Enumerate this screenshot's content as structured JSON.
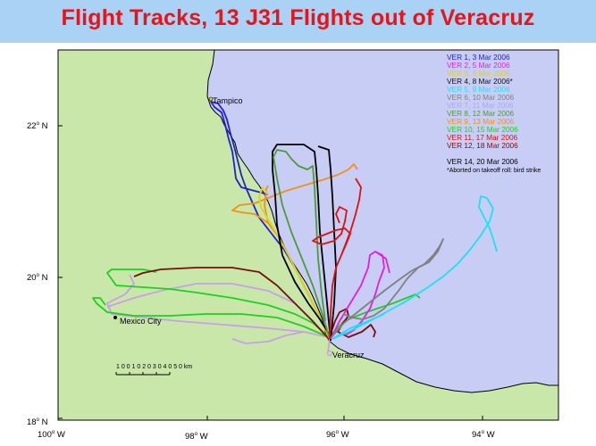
{
  "title": "Flight Tracks, 13 J31 Flights out of Veracruz",
  "map": {
    "colors": {
      "land": "#c8e7a8",
      "water": "#c8cdf5",
      "coast": "#000000",
      "frame": "#000000"
    },
    "lat_labels": [
      {
        "deg": "22",
        "dir": "N"
      },
      {
        "deg": "20",
        "dir": "N"
      },
      {
        "deg": "18",
        "dir": "N"
      }
    ],
    "lon_labels": [
      {
        "deg": "100",
        "dir": "W"
      },
      {
        "deg": "98",
        "dir": "W"
      },
      {
        "deg": "96",
        "dir": "W"
      },
      {
        "deg": "94",
        "dir": "W"
      }
    ],
    "cities": {
      "tampico": "Tampico",
      "mexico_city": "Mexico City",
      "veracruz": "Veracruz"
    },
    "scale_bar": {
      "label": "1 0 0 1 0 2 0 3 0 4 0 5 0 km"
    }
  },
  "legend": {
    "entries": [
      {
        "label": "VER  1,  3 Mar 2006",
        "color": "#2222cc"
      },
      {
        "label": "VER  2,  5 Mar 2006",
        "color": "#e020e0"
      },
      {
        "label": "VER  3,  6 Mar 2006",
        "color": "#e0d020"
      },
      {
        "label": "VER  4,  8 Mar 2006*",
        "color": "#111111"
      },
      {
        "label": "VER  5,  9 Mar 2006",
        "color": "#20e0f0"
      },
      {
        "label": "VER  6, 10 Mar 2006",
        "color": "#808080"
      },
      {
        "label": "VER  7, 11 Mar 2006",
        "color": "#a8a8f0"
      },
      {
        "label": "VER  8, 12 Mar 2006",
        "color": "#4e9a36"
      },
      {
        "label": "VER  9, 13 Mar 2006",
        "color": "#f0901a"
      },
      {
        "label": "VER 10, 15 Mar 2006",
        "color": "#20d020"
      },
      {
        "label": "VER 11, 17 Mar 2006",
        "color": "#e01010"
      },
      {
        "label": "VER 12, 18 Mar 2006",
        "color": "#7a0d0d"
      },
      {
        "label": "VER 14, 20 Mar 2006",
        "color": "#000000"
      }
    ],
    "note": "*Aborted on takeoff roll: bird strike"
  },
  "tracks": [
    {
      "name": "VER 1",
      "color": "#2222cc"
    },
    {
      "name": "VER 2",
      "color": "#e020e0"
    },
    {
      "name": "VER 3",
      "color": "#e0d020"
    },
    {
      "name": "VER 5",
      "color": "#20e0f0"
    },
    {
      "name": "VER 6",
      "color": "#808080"
    },
    {
      "name": "VER 7",
      "color": "#c8a0e8"
    },
    {
      "name": "VER 8",
      "color": "#4e9a36"
    },
    {
      "name": "VER 9",
      "color": "#f0901a"
    },
    {
      "name": "VER 10",
      "color": "#20d020"
    },
    {
      "name": "VER 11",
      "color": "#e01010"
    },
    {
      "name": "VER 12",
      "color": "#7a0d0d"
    },
    {
      "name": "VER 14",
      "color": "#000000"
    }
  ]
}
